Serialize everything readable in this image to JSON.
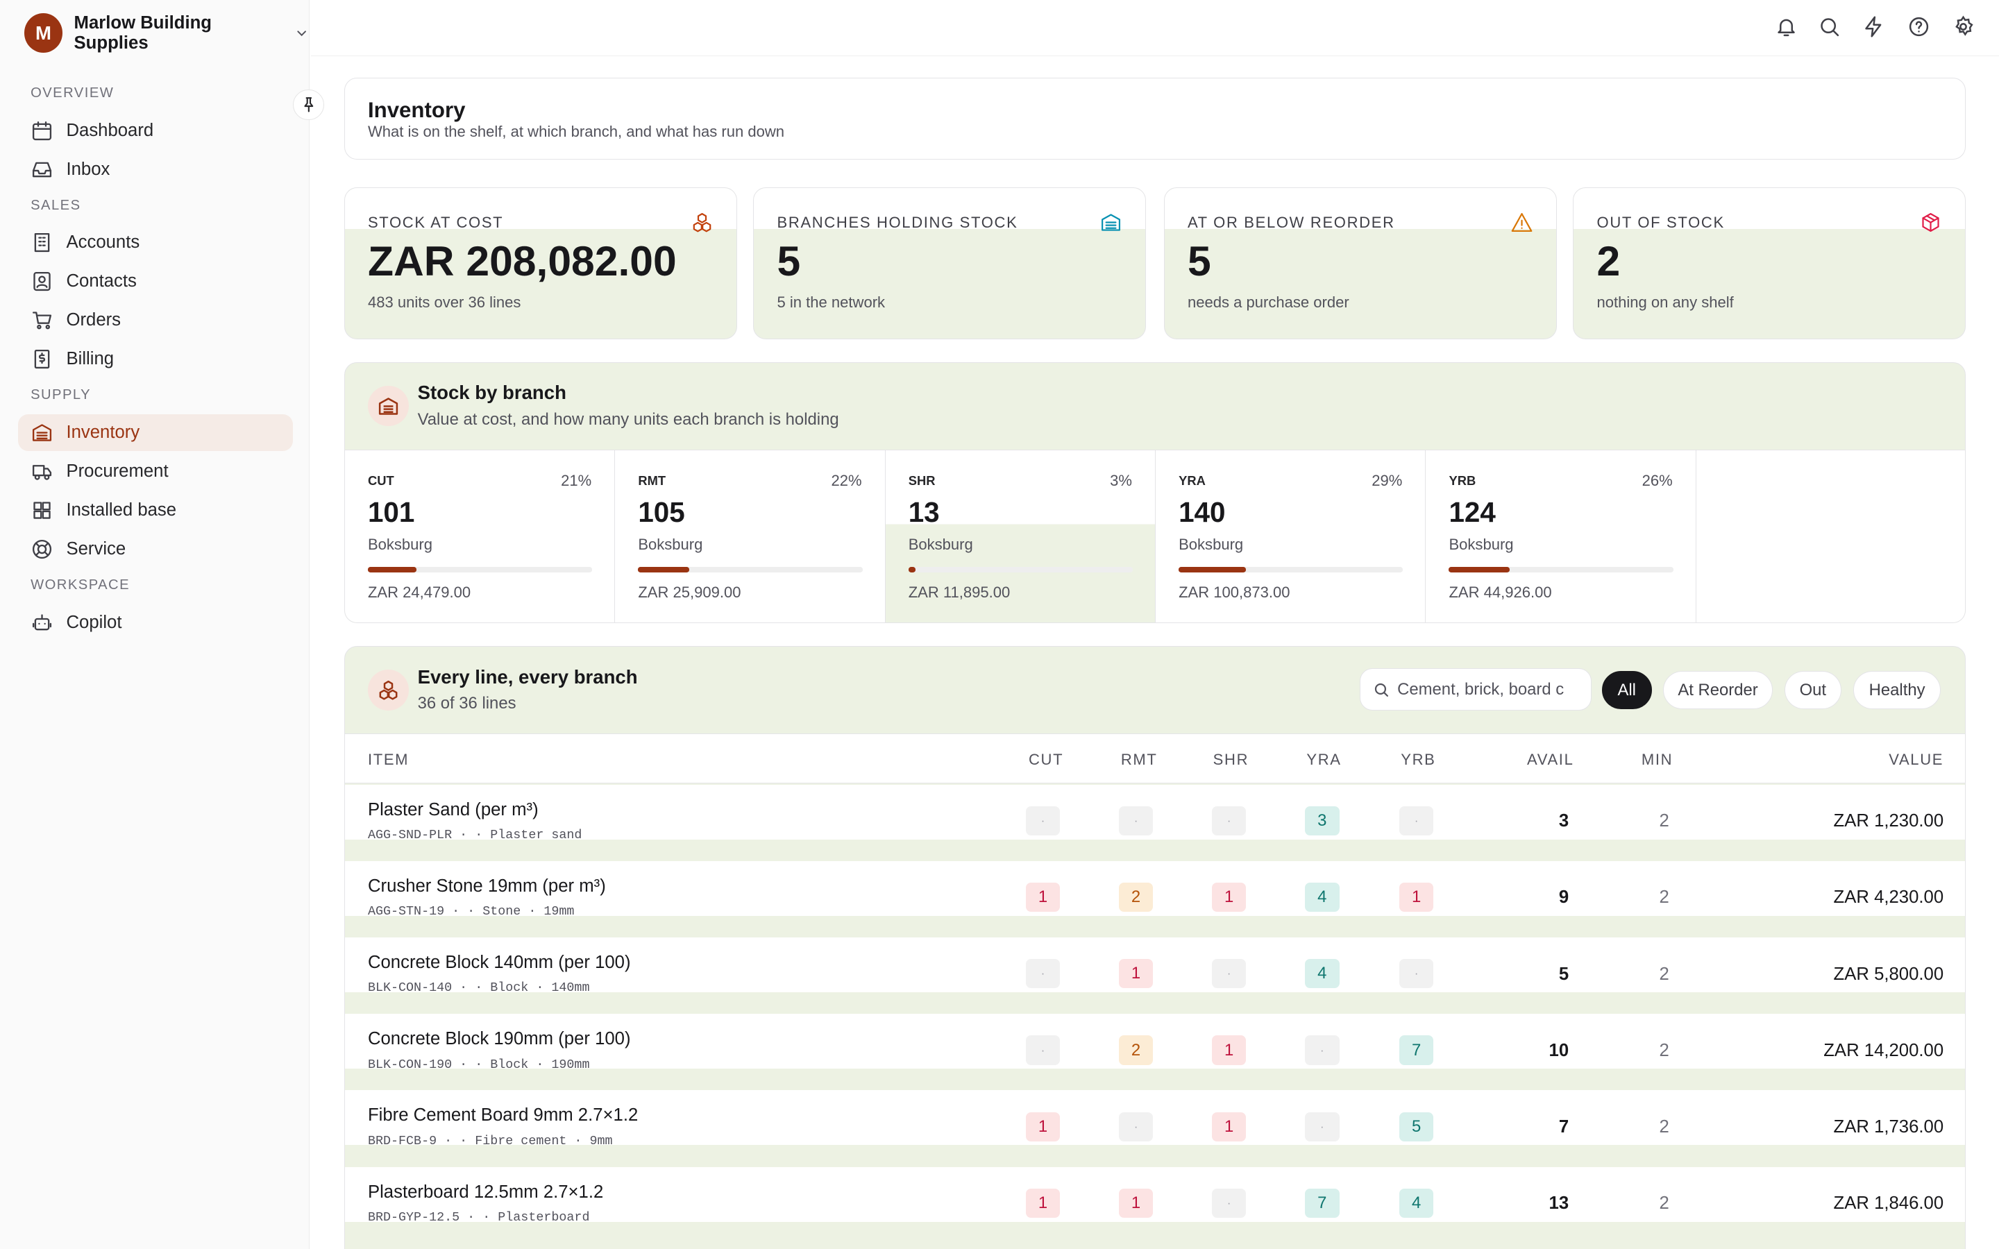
{
  "org": {
    "initial": "M",
    "name": "Marlow Building Supplies"
  },
  "nav": {
    "sections": [
      {
        "label": "OVERVIEW",
        "items": [
          {
            "label": "Dashboard",
            "icon": "calendar-icon"
          },
          {
            "label": "Inbox",
            "icon": "inbox-icon"
          }
        ]
      },
      {
        "label": "SALES",
        "items": [
          {
            "label": "Accounts",
            "icon": "building-icon"
          },
          {
            "label": "Contacts",
            "icon": "contact-card-icon"
          },
          {
            "label": "Orders",
            "icon": "cart-icon"
          },
          {
            "label": "Billing",
            "icon": "dollar-receipt-icon"
          }
        ]
      },
      {
        "label": "SUPPLY",
        "items": [
          {
            "label": "Inventory",
            "icon": "warehouse-icon",
            "active": true
          },
          {
            "label": "Procurement",
            "icon": "truck-icon"
          },
          {
            "label": "Installed base",
            "icon": "grid-icon"
          },
          {
            "label": "Service",
            "icon": "lifebuoy-icon"
          }
        ]
      },
      {
        "label": "WORKSPACE",
        "items": [
          {
            "label": "Copilot",
            "icon": "robot-icon"
          }
        ]
      }
    ]
  },
  "topbar": {
    "icons": [
      "bell-icon",
      "search-icon",
      "lightning-icon",
      "help-icon",
      "settings-icon"
    ]
  },
  "page": {
    "title": "Inventory",
    "subtitle": "What is on the shelf, at which branch, and what has run down"
  },
  "kpis": [
    {
      "label": "Stock at cost",
      "value": "ZAR 208,082.00",
      "sub": "483 units over 36 lines",
      "icon": "boxes-icon",
      "color": "#c2410c"
    },
    {
      "label": "Branches holding stock",
      "value": "5",
      "sub": "5 in the network",
      "icon": "warehouse-icon",
      "color": "#0891b2"
    },
    {
      "label": "At or below reorder",
      "value": "5",
      "sub": "needs a purchase order",
      "icon": "warning-icon",
      "color": "#d97706"
    },
    {
      "label": "Out of stock",
      "value": "2",
      "sub": "nothing on any shelf",
      "icon": "package-icon",
      "color": "#e11d48"
    }
  ],
  "branch_section": {
    "title": "Stock by branch",
    "subtitle": "Value at cost, and how many units each branch is holding"
  },
  "branches": [
    {
      "code": "CUT",
      "pct": "21%",
      "units": "101",
      "city": "Boksburg",
      "value": "ZAR 24,479.00",
      "share": 0.21
    },
    {
      "code": "RMT",
      "pct": "22%",
      "units": "105",
      "city": "Boksburg",
      "value": "ZAR 25,909.00",
      "share": 0.22
    },
    {
      "code": "SHR",
      "pct": "3%",
      "units": "13",
      "city": "Boksburg",
      "value": "ZAR 11,895.00",
      "share": 0.03
    },
    {
      "code": "YRA",
      "pct": "29%",
      "units": "140",
      "city": "Boksburg",
      "value": "ZAR 100,873.00",
      "share": 0.29
    },
    {
      "code": "YRB",
      "pct": "26%",
      "units": "124",
      "city": "Boksburg",
      "value": "ZAR 44,926.00",
      "share": 0.26
    }
  ],
  "lines_section": {
    "title": "Every line, every branch",
    "subtitle": "36 of 36 lines"
  },
  "search": {
    "placeholder": "Cement, brick, board c"
  },
  "filters": [
    "All",
    "At Reorder",
    "Out",
    "Healthy"
  ],
  "columns": [
    "ITEM",
    "CUT",
    "RMT",
    "SHR",
    "YRA",
    "YRB",
    "AVAIL",
    "MIN",
    "VALUE"
  ],
  "empty_mark": "·",
  "rows": [
    {
      "name": "Plaster Sand (per m³)",
      "meta": "AGG-SND-PLR · · Plaster sand",
      "stock": [
        "",
        "",
        "",
        "3",
        ""
      ],
      "avail": "3",
      "min": "2",
      "value": "ZAR 1,230.00"
    },
    {
      "name": "Crusher Stone 19mm (per m³)",
      "meta": "AGG-STN-19 · · Stone · 19mm",
      "stock": [
        "1",
        "2",
        "1",
        "4",
        "1"
      ],
      "avail": "9",
      "min": "2",
      "value": "ZAR 4,230.00"
    },
    {
      "name": "Concrete Block 140mm (per 100)",
      "meta": "BLK-CON-140 · · Block · 140mm",
      "stock": [
        "",
        "1",
        "",
        "4",
        ""
      ],
      "avail": "5",
      "min": "2",
      "value": "ZAR 5,800.00"
    },
    {
      "name": "Concrete Block 190mm (per 100)",
      "meta": "BLK-CON-190 · · Block · 190mm",
      "stock": [
        "",
        "2",
        "1",
        "",
        "7"
      ],
      "avail": "10",
      "min": "2",
      "value": "ZAR 14,200.00"
    },
    {
      "name": "Fibre Cement Board 9mm 2.7×1.2",
      "meta": "BRD-FCB-9 · · Fibre cement · 9mm",
      "stock": [
        "1",
        "",
        "1",
        "",
        "5"
      ],
      "avail": "7",
      "min": "2",
      "value": "ZAR 1,736.00"
    },
    {
      "name": "Plasterboard 12.5mm 2.7×1.2",
      "meta": "BRD-GYP-12.5 · · Plasterboard",
      "stock": [
        "1",
        "1",
        "",
        "7",
        "4"
      ],
      "avail": "13",
      "min": "2",
      "value": "ZAR 1,846.00"
    }
  ]
}
